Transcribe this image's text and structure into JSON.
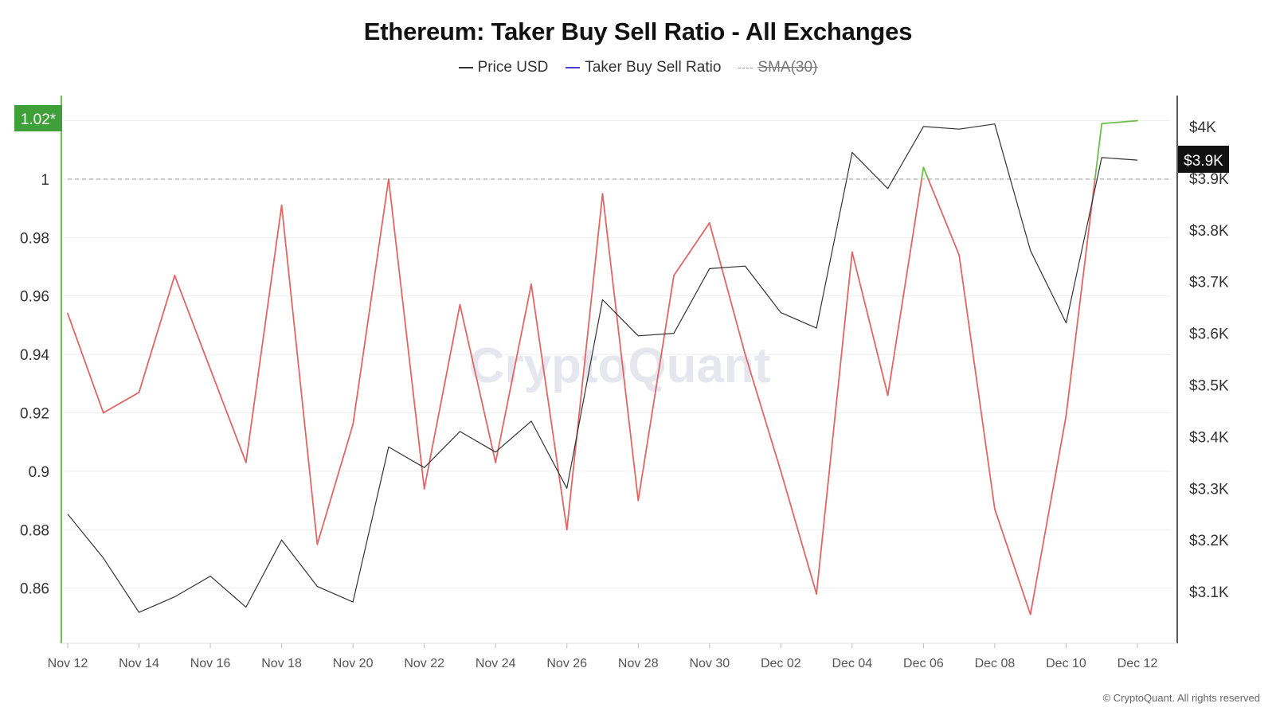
{
  "title": "Ethereum: Taker Buy Sell Ratio - All Exchanges",
  "legend": [
    {
      "label": "Price USD",
      "color": "#333333",
      "style": "solid",
      "enabled": true
    },
    {
      "label": "Taker Buy Sell Ratio",
      "color": "#4a3fdc",
      "style": "solid",
      "enabled": true
    },
    {
      "label": "SMA(30)",
      "color": "#999999",
      "style": "dashed",
      "enabled": false
    }
  ],
  "watermark": "CryptoQuant",
  "copyright": "© CryptoQuant. All rights reserved",
  "badges": {
    "left": "1.02*",
    "right": "$3.9K"
  },
  "chart_data": {
    "type": "line",
    "x": [
      "Nov 12",
      "Nov 13",
      "Nov 14",
      "Nov 15",
      "Nov 16",
      "Nov 17",
      "Nov 18",
      "Nov 19",
      "Nov 20",
      "Nov 21",
      "Nov 22",
      "Nov 23",
      "Nov 24",
      "Nov 25",
      "Nov 26",
      "Nov 27",
      "Nov 28",
      "Nov 29",
      "Nov 30",
      "Dec 01",
      "Dec 02",
      "Dec 03",
      "Dec 04",
      "Dec 05",
      "Dec 06",
      "Dec 07",
      "Dec 08",
      "Dec 09",
      "Dec 10",
      "Dec 11",
      "Dec 12"
    ],
    "x_tick_labels": [
      "Nov 12",
      "Nov 14",
      "Nov 16",
      "Nov 18",
      "Nov 20",
      "Nov 22",
      "Nov 24",
      "Nov 26",
      "Nov 28",
      "Nov 30",
      "Dec 02",
      "Dec 04",
      "Dec 06",
      "Dec 08",
      "Dec 10",
      "Dec 12"
    ],
    "series": [
      {
        "name": "Taker Buy Sell Ratio",
        "axis": "left",
        "color_below_1": "#e06666",
        "color_above_1": "#6cc04a",
        "values": [
          0.954,
          0.92,
          0.927,
          0.967,
          0.935,
          0.903,
          0.991,
          0.875,
          0.916,
          1.0,
          0.894,
          0.957,
          0.903,
          0.964,
          0.88,
          0.995,
          0.89,
          0.967,
          0.985,
          0.94,
          0.9,
          0.858,
          0.975,
          0.926,
          1.004,
          0.974,
          0.887,
          0.851,
          0.919,
          1.019,
          1.02
        ]
      },
      {
        "name": "Price USD",
        "axis": "right",
        "color": "#333333",
        "values": [
          3250,
          3165,
          3060,
          3090,
          3130,
          3070,
          3200,
          3110,
          3080,
          3380,
          3340,
          3410,
          3370,
          3430,
          3300,
          3665,
          3595,
          3600,
          3725,
          3730,
          3640,
          3610,
          3950,
          3880,
          4000,
          3995,
          4005,
          3760,
          3620,
          3940,
          3935
        ]
      }
    ],
    "left_axis": {
      "ticks": [
        "1.02",
        "1",
        "0.98",
        "0.96",
        "0.94",
        "0.92",
        "0.9",
        "0.88",
        "0.86"
      ],
      "ylim": [
        0.8411,
        1.0286
      ]
    },
    "right_axis": {
      "ticks": [
        "$4K",
        "$3.9K",
        "$3.8K",
        "$3.7K",
        "$3.6K",
        "$3.5K",
        "$3.4K",
        "$3.3K",
        "$3.2K",
        "$3.1K"
      ],
      "ylim": [
        3000,
        4060
      ]
    },
    "reference_line": {
      "value": 1.0,
      "style": "dashed"
    },
    "grid": true
  }
}
